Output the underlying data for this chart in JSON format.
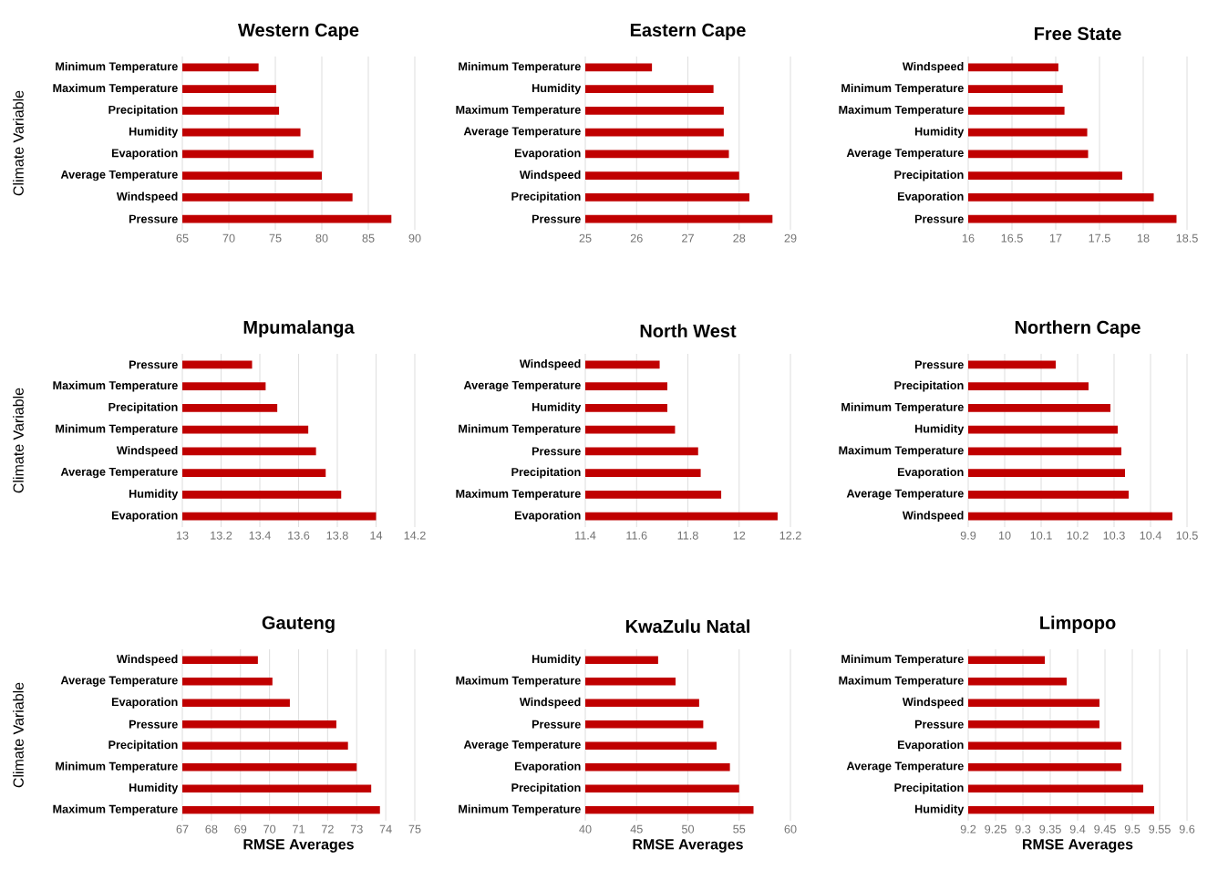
{
  "chart_data": [
    {
      "type": "bar",
      "orientation": "horizontal",
      "title": "Western Cape",
      "ylabel": "Climate Variable",
      "categories": [
        "Minimum Temperature",
        "Maximum Temperature",
        "Precipitation",
        "Humidity",
        "Evaporation",
        "Average Temperature",
        "Windspeed",
        "Pressure"
      ],
      "values": [
        73.2,
        75.1,
        75.4,
        77.7,
        79.1,
        80.0,
        83.3,
        87.5
      ],
      "color": "#c00000",
      "xlim": [
        65,
        90
      ],
      "xticks": [
        65,
        70,
        75,
        80,
        85,
        90
      ],
      "grid": "x"
    },
    {
      "type": "bar",
      "orientation": "horizontal",
      "title": "Eastern Cape",
      "categories": [
        "Minimum Temperature",
        "Humidity",
        "Maximum Temperature",
        "Average Temperature",
        "Evaporation",
        "Windspeed",
        "Precipitation",
        "Pressure"
      ],
      "values": [
        26.3,
        27.5,
        27.7,
        27.7,
        27.8,
        28.0,
        28.2,
        28.65
      ],
      "color": "#c00000",
      "xlim": [
        25,
        29
      ],
      "xticks": [
        25,
        26,
        27,
        28,
        29
      ],
      "grid": "x"
    },
    {
      "type": "bar",
      "orientation": "horizontal",
      "title": "Free State",
      "categories": [
        "Windspeed",
        "Minimum Temperature",
        "Maximum Temperature",
        "Humidity",
        "Average Temperature",
        "Precipitation",
        "Evaporation",
        "Pressure"
      ],
      "values": [
        17.03,
        17.08,
        17.1,
        17.36,
        17.37,
        17.76,
        18.12,
        18.38
      ],
      "color": "#c00000",
      "xlim": [
        16,
        18.5
      ],
      "xticks": [
        16,
        16.5,
        17,
        17.5,
        18,
        18.5
      ],
      "grid": "x"
    },
    {
      "type": "bar",
      "orientation": "horizontal",
      "title": "Mpumalanga",
      "ylabel": "Climate Variable",
      "categories": [
        "Pressure",
        "Maximum Temperature",
        "Precipitation",
        "Minimum Temperature",
        "Windspeed",
        "Average Temperature",
        "Humidity",
        "Evaporation"
      ],
      "values": [
        13.36,
        13.43,
        13.49,
        13.65,
        13.69,
        13.74,
        13.82,
        14.0
      ],
      "color": "#c00000",
      "xlim": [
        13,
        14.2
      ],
      "xticks": [
        13,
        13.2,
        13.4,
        13.6,
        13.8,
        14,
        14.2
      ],
      "grid": "x"
    },
    {
      "type": "bar",
      "orientation": "horizontal",
      "title": "North West",
      "categories": [
        "Windspeed",
        "Average Temperature",
        "Humidity",
        "Minimum Temperature",
        "Pressure",
        "Precipitation",
        "Maximum Temperature",
        "Evaporation"
      ],
      "values": [
        11.69,
        11.72,
        11.72,
        11.75,
        11.84,
        11.85,
        11.93,
        12.15
      ],
      "color": "#c00000",
      "xlim": [
        11.4,
        12.2
      ],
      "xticks": [
        11.4,
        11.6,
        11.8,
        12,
        12.2
      ],
      "grid": "x"
    },
    {
      "type": "bar",
      "orientation": "horizontal",
      "title": "Northern Cape",
      "categories": [
        "Pressure",
        "Precipitation",
        "Minimum Temperature",
        "Humidity",
        "Maximum Temperature",
        "Evaporation",
        "Average Temperature",
        "Windspeed"
      ],
      "values": [
        10.14,
        10.23,
        10.29,
        10.31,
        10.32,
        10.33,
        10.34,
        10.46
      ],
      "color": "#c00000",
      "xlim": [
        9.9,
        10.5
      ],
      "xticks": [
        9.9,
        10,
        10.1,
        10.2,
        10.3,
        10.4,
        10.5
      ],
      "grid": "x"
    },
    {
      "type": "bar",
      "orientation": "horizontal",
      "title": "Gauteng",
      "ylabel": "Climate Variable",
      "xlabel": "RMSE Averages",
      "categories": [
        "Windspeed",
        "Average Temperature",
        "Evaporation",
        "Pressure",
        "Precipitation",
        "Minimum Temperature",
        "Humidity",
        "Maximum Temperature"
      ],
      "values": [
        69.6,
        70.1,
        70.7,
        72.3,
        72.7,
        73.0,
        73.5,
        73.8
      ],
      "color": "#c00000",
      "xlim": [
        67,
        75
      ],
      "xticks": [
        67,
        68,
        69,
        70,
        71,
        72,
        73,
        74,
        75
      ],
      "grid": "x"
    },
    {
      "type": "bar",
      "orientation": "horizontal",
      "title": "KwaZulu Natal",
      "xlabel": "RMSE Averages",
      "categories": [
        "Humidity",
        "Maximum Temperature",
        "Windspeed",
        "Pressure",
        "Average Temperature",
        "Evaporation",
        "Precipitation",
        "Minimum Temperature"
      ],
      "values": [
        47.1,
        48.8,
        51.1,
        51.5,
        52.8,
        54.1,
        55.0,
        56.4
      ],
      "color": "#c00000",
      "xlim": [
        40,
        60
      ],
      "xticks": [
        40,
        45,
        50,
        55,
        60
      ],
      "grid": "x"
    },
    {
      "type": "bar",
      "orientation": "horizontal",
      "title": "Limpopo",
      "xlabel": "RMSE Averages",
      "categories": [
        "Minimum Temperature",
        "Maximum Temperature",
        "Windspeed",
        "Pressure",
        "Evaporation",
        "Average Temperature",
        "Precipitation",
        "Humidity"
      ],
      "values": [
        9.34,
        9.38,
        9.44,
        9.44,
        9.48,
        9.48,
        9.52,
        9.54
      ],
      "color": "#c00000",
      "xlim": [
        9.2,
        9.6
      ],
      "xticks": [
        9.2,
        9.25,
        9.3,
        9.35,
        9.4,
        9.45,
        9.5,
        9.55,
        9.6
      ],
      "grid": "x"
    }
  ]
}
